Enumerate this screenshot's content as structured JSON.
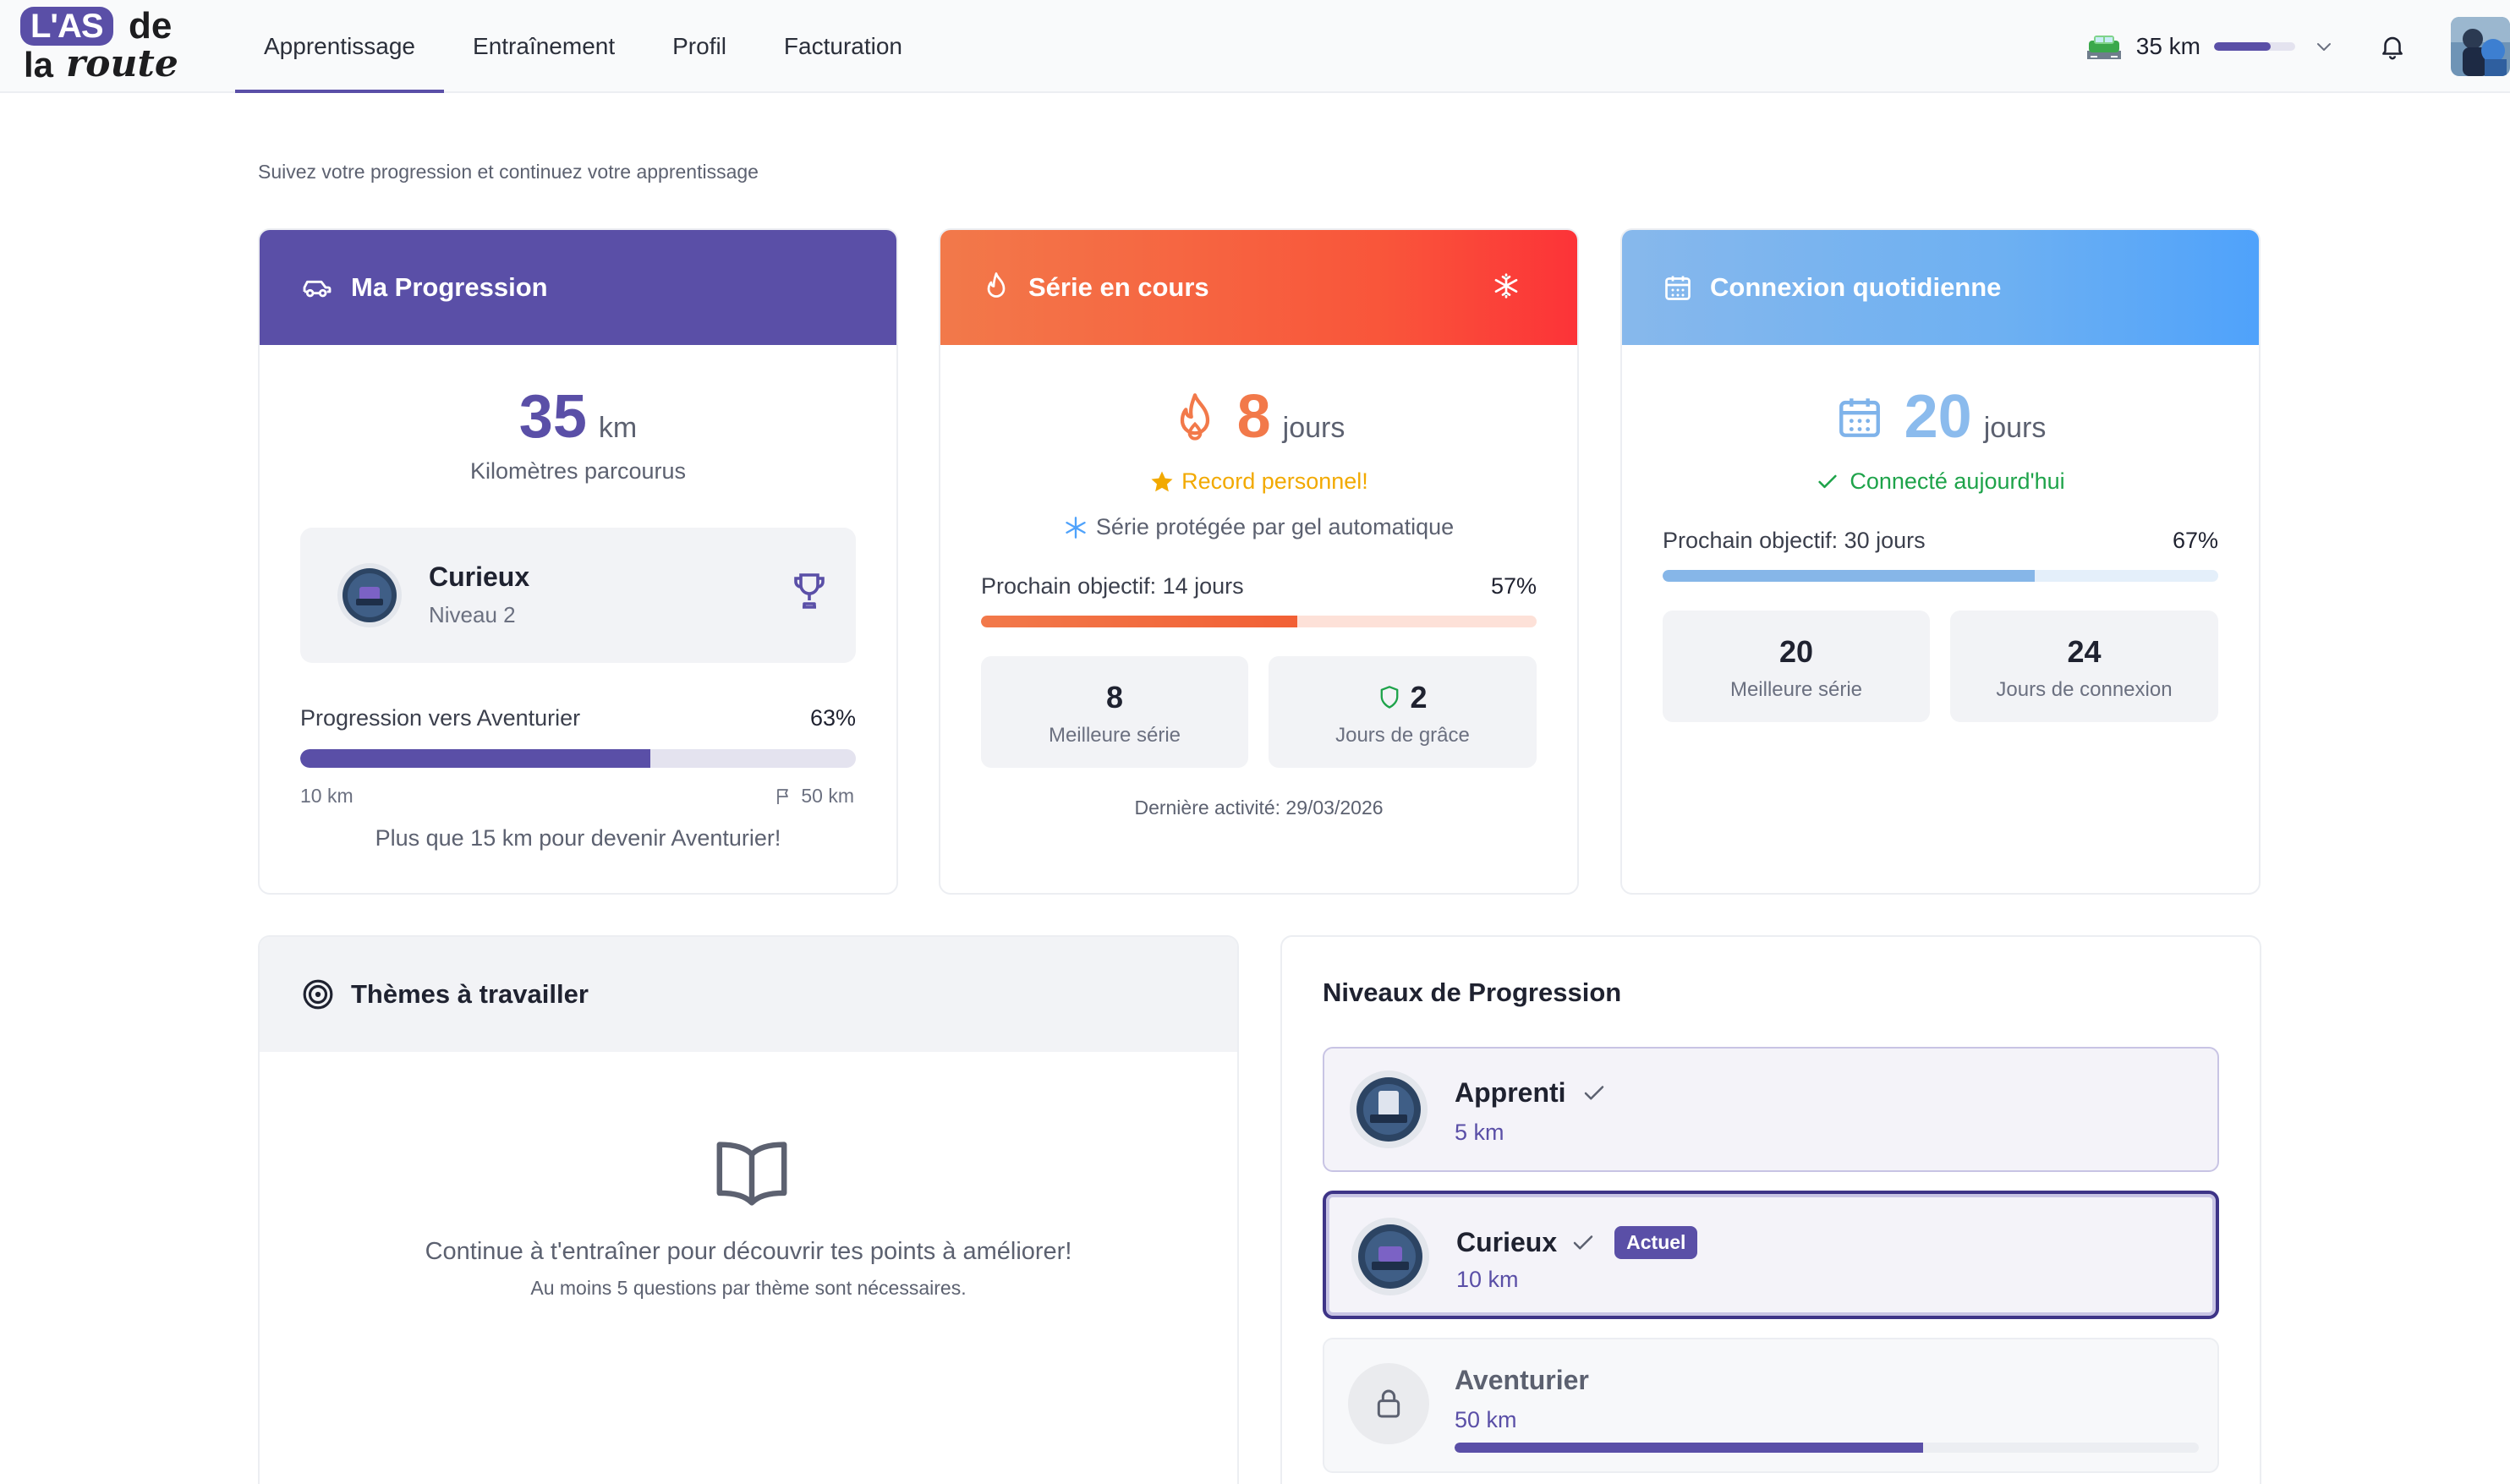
{
  "brand": {
    "logo_box": "L'AS",
    "logo_de": "de",
    "logo_la": "la",
    "logo_route": "route"
  },
  "nav": {
    "items": [
      {
        "label": "Apprentissage",
        "active": true
      },
      {
        "label": "Entraînement",
        "active": false
      },
      {
        "label": "Profil",
        "active": false
      },
      {
        "label": "Facturation",
        "active": false
      }
    ]
  },
  "header": {
    "km": "35 km",
    "km_progress": 0.7
  },
  "page": {
    "subtitle": "Suivez votre progression et continuez votre apprentissage"
  },
  "progression": {
    "title": "Ma Progression",
    "value": "35",
    "unit": "km",
    "caption": "Kilomètres parcourus",
    "level_name": "Curieux",
    "level_sub": "Niveau 2",
    "towards_label": "Progression vers Aventurier",
    "towards_pct": "63%",
    "towards_value": 0.63,
    "min_km": "10 km",
    "max_km": "50 km",
    "remaining": "Plus que 15 km pour devenir Aventurier!"
  },
  "serie": {
    "title": "Série en cours",
    "value": "8",
    "unit": "jours",
    "record": "Record personnel!",
    "protected": "Série protégée par gel automatique",
    "objective": "Prochain objectif: 14 jours",
    "objective_pct": "57%",
    "objective_value": 0.57,
    "best_value": "8",
    "best_label": "Meilleure série",
    "grace_value": "2",
    "grace_label": "Jours de grâce",
    "last_activity": "Dernière activité: 29/03/2026"
  },
  "connexion": {
    "title": "Connexion quotidienne",
    "value": "20",
    "unit": "jours",
    "status": "Connecté aujourd'hui",
    "objective": "Prochain objectif: 30 jours",
    "objective_pct": "67%",
    "objective_value": 0.67,
    "best_value": "20",
    "best_label": "Meilleure série",
    "days_value": "24",
    "days_label": "Jours de connexion"
  },
  "themes": {
    "title": "Thèmes à travailler",
    "empty_main": "Continue à t'entraîner pour découvrir tes points à améliorer!",
    "empty_sub": "Au moins 5 questions par thème sont nécessaires."
  },
  "levels": {
    "title": "Niveaux de Progression",
    "current_badge": "Actuel",
    "items": [
      {
        "name": "Apprenti",
        "km": "5 km",
        "state": "done"
      },
      {
        "name": "Curieux",
        "km": "10 km",
        "state": "current"
      },
      {
        "name": "Aventurier",
        "km": "50 km",
        "state": "locked",
        "progress": 0.63
      }
    ]
  },
  "colors": {
    "primary": "#5a4fa7",
    "orange": "#f2794a",
    "red": "#fc3338",
    "blue": "#4fa2fb",
    "green": "#1ea34a",
    "gold": "#f2a900"
  }
}
